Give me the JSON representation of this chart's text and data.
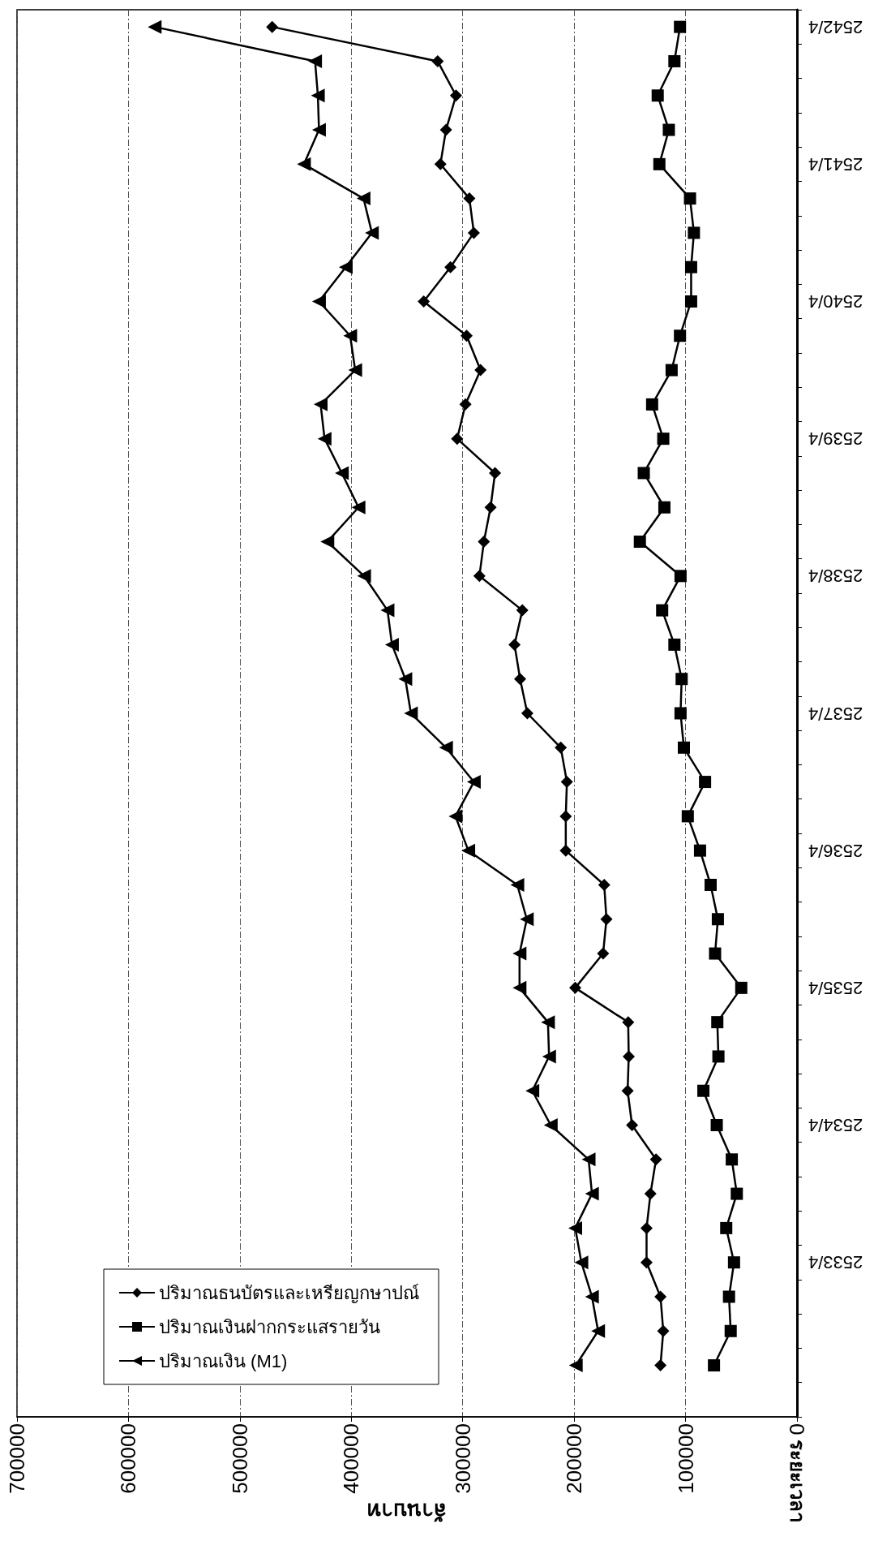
{
  "chart_data": {
    "type": "line",
    "orientation": "horizontal",
    "xlabel": "ล้านบาท",
    "ylabel": "ระยะเวลา",
    "categories": [
      "2542/4",
      null,
      null,
      null,
      "2541/4",
      null,
      null,
      null,
      "2540/4",
      null,
      null,
      null,
      "2539/4",
      null,
      null,
      null,
      "2538/4",
      null,
      null,
      null,
      "2537/4",
      null,
      null,
      null,
      "2536/4",
      null,
      null,
      null,
      "2535/4",
      null,
      null,
      null,
      "2534/4",
      null,
      null,
      null,
      "2533/4",
      null,
      null,
      null,
      null
    ],
    "series": [
      {
        "name": "ปริมาณธนบัตรและเหรียญกษาปณ์",
        "color": "#000000",
        "marker": "diamond",
        "values": [
          471000,
          322500,
          306000,
          315000,
          320000,
          294000,
          290000,
          311000,
          335000,
          296500,
          284000,
          297500,
          305000,
          271000,
          275000,
          281000,
          285000,
          246500,
          253500,
          248500,
          242000,
          212000,
          206500,
          207500,
          207500,
          173000,
          171000,
          174000,
          199000,
          151500,
          151000,
          152000,
          148000,
          126500,
          131500,
          135000,
          135000,
          122500,
          120000,
          122500,
          null
        ]
      },
      {
        "name": "ปริมาณเงินฝากกระแสรายวัน",
        "color": "#000000",
        "marker": "square",
        "values": [
          105000,
          110000,
          125000,
          115000,
          123500,
          96000,
          92500,
          95000,
          95000,
          105000,
          112500,
          130000,
          120000,
          137500,
          119000,
          141000,
          104500,
          121000,
          110000,
          103500,
          104500,
          101500,
          82500,
          98000,
          87000,
          77500,
          71000,
          73500,
          50000,
          71500,
          70500,
          84000,
          72000,
          58500,
          54000,
          63500,
          56500,
          61000,
          59500,
          74500,
          null
        ]
      },
      {
        "name": "ปริมาณเงิน (M1)",
        "color": "#000000",
        "marker": "triangle",
        "values": [
          576500,
          432500,
          430000,
          429000,
          442500,
          389000,
          381500,
          405000,
          429000,
          401000,
          396500,
          427500,
          424000,
          408500,
          393500,
          421500,
          388500,
          367500,
          363500,
          351500,
          346500,
          315000,
          290000,
          306500,
          295000,
          251000,
          242500,
          249000,
          249000,
          223500,
          222500,
          237500,
          221000,
          187000,
          184000,
          199000,
          193500,
          184000,
          178500,
          198500,
          null
        ]
      }
    ],
    "xlim": [
      700000,
      0
    ],
    "xticks": [
      0,
      100000,
      200000,
      300000,
      400000,
      500000,
      600000,
      700000
    ],
    "grid": "x",
    "legend": "bottom left",
    "line_style": "solid"
  }
}
